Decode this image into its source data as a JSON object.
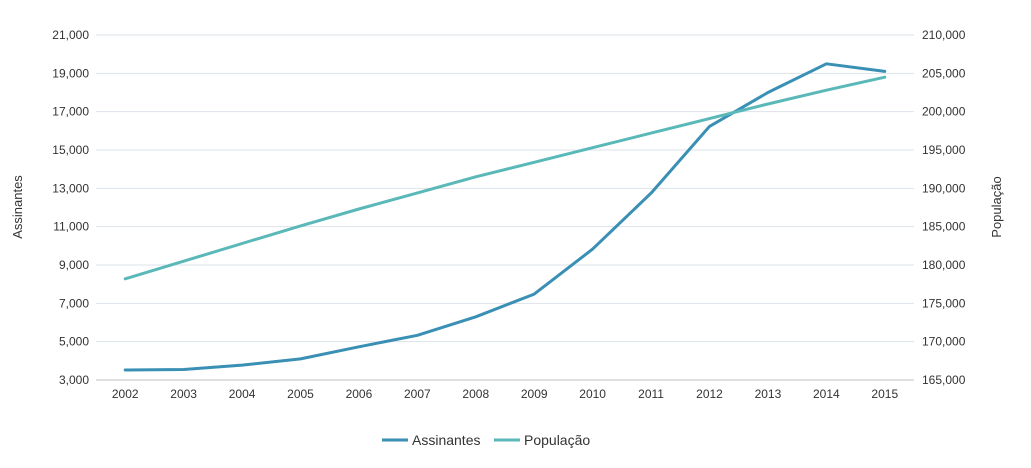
{
  "chart_data": {
    "type": "line",
    "title": "",
    "categories": [
      "2002",
      "2003",
      "2004",
      "2005",
      "2006",
      "2007",
      "2008",
      "2009",
      "2010",
      "2011",
      "2012",
      "2013",
      "2014",
      "2015"
    ],
    "y_left": {
      "label": "Assinantes",
      "range": [
        3000,
        21000
      ],
      "ticks": [
        "3,000",
        "5,000",
        "7,000",
        "9,000",
        "11,000",
        "13,000",
        "15,000",
        "17,000",
        "19,000",
        "21,000"
      ]
    },
    "y_right": {
      "label": "População",
      "range": [
        165000,
        210000
      ],
      "ticks": [
        "165,000",
        "170,000",
        "175,000",
        "180,000",
        "185,000",
        "190,000",
        "195,000",
        "200,000",
        "205,000",
        "210,000"
      ]
    },
    "series": [
      {
        "name": "Assinantes",
        "axis": "left",
        "color": "#3a8fb5",
        "values": [
          3520,
          3550,
          3780,
          4100,
          4730,
          5330,
          6300,
          7480,
          9830,
          12750,
          16230,
          18000,
          19500,
          19100
        ]
      },
      {
        "name": "População",
        "axis": "right",
        "color": "#5ab8b8",
        "values": [
          178200,
          180500,
          182800,
          185100,
          187300,
          189400,
          191500,
          193400,
          195300,
          197200,
          199100,
          201000,
          202800,
          204500
        ]
      }
    ],
    "grid": true,
    "legend": "bottom-center"
  }
}
